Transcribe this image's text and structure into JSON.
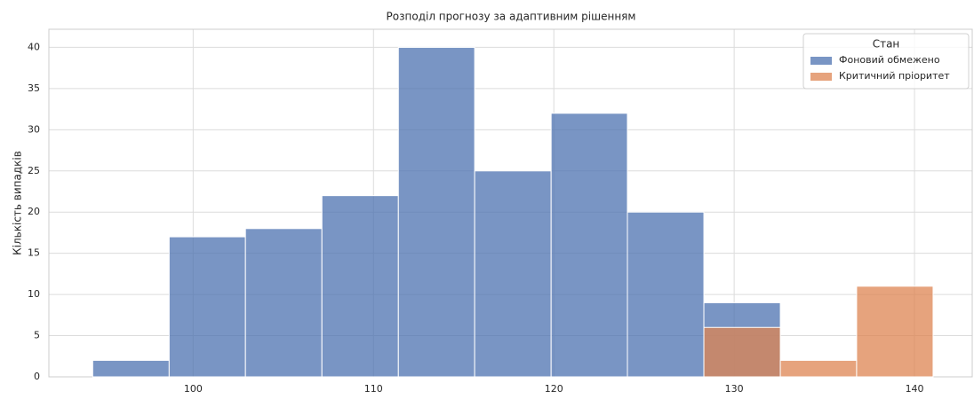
{
  "chart_data": {
    "type": "histogram",
    "title": "Розподіл прогнозу за адаптивним рішенням",
    "ylabel": "Кількість випадків",
    "bins": [
      94.43,
      98.67,
      102.9,
      107.14,
      111.38,
      115.61,
      119.85,
      124.08,
      128.32,
      132.56,
      136.79,
      141.03
    ],
    "series": [
      {
        "name": "Фоновий обмежено",
        "color": "#4c72b0",
        "values": [
          2,
          17,
          18,
          22,
          40,
          25,
          32,
          20,
          9,
          0,
          0
        ]
      },
      {
        "name": "Критичний пріоритет",
        "color": "#dd8452",
        "values": [
          0,
          0,
          0,
          0,
          0,
          0,
          0,
          0,
          6,
          2,
          11
        ]
      }
    ],
    "legend_title": "Стан",
    "legend": "upper right",
    "xlim": [
      92.0,
      143.2
    ],
    "xticks": [
      100,
      110,
      120,
      130,
      140
    ],
    "ylim": [
      0,
      42.2
    ],
    "yticks": [
      0,
      5,
      10,
      15,
      20,
      25,
      30,
      35,
      40
    ],
    "grid": true
  }
}
